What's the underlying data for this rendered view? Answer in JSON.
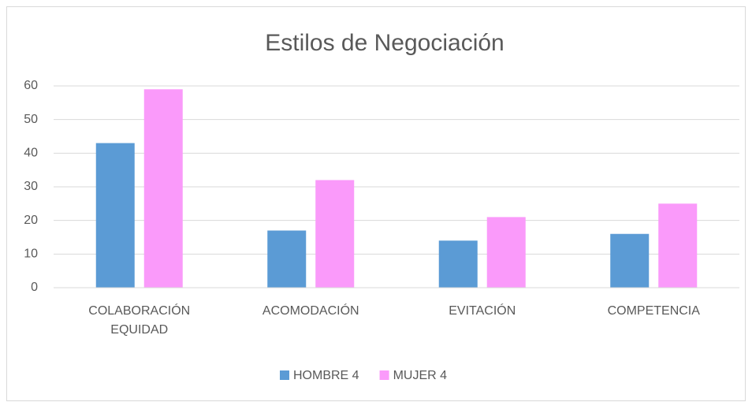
{
  "chart_data": {
    "type": "bar",
    "title": "Estilos de Negociación",
    "categories": [
      "COLABORACIÓN EQUIDAD",
      "ACOMODACIÓN",
      "EVITACIÓN",
      "COMPETENCIA"
    ],
    "series": [
      {
        "name": "HOMBRE 4",
        "color": "#5b9bd5",
        "values": [
          43,
          17,
          14,
          16
        ]
      },
      {
        "name": "MUJER 4",
        "color": "#fa9afa",
        "values": [
          59,
          32,
          21,
          25
        ]
      }
    ],
    "ylim": [
      0,
      60
    ],
    "yticks": [
      0,
      10,
      20,
      30,
      40,
      50,
      60
    ],
    "grid": true,
    "legend": "bottom"
  }
}
